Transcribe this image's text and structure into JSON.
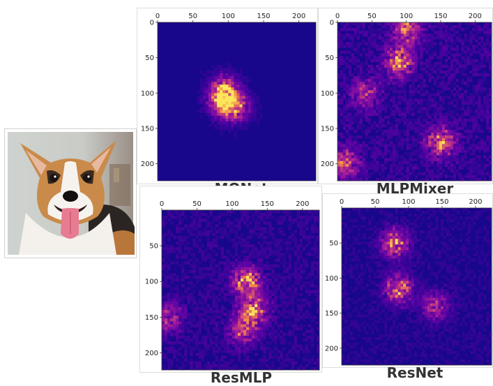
{
  "photo": {
    "subject-icon": "corgi-dog-photo-icon"
  },
  "colors": {
    "heat_low": "#17089a",
    "heat_mid": "#7a1fb0",
    "heat_high": "#f7a23a",
    "heat_peak": "#ffe66b"
  },
  "chart_data": [
    {
      "type": "heatmap",
      "title": "MONet",
      "xticks": [
        0,
        50,
        100,
        150,
        200
      ],
      "yticks": [
        0,
        50,
        100,
        150,
        200
      ],
      "xlim": [
        0,
        224
      ],
      "ylim": [
        224,
        0
      ],
      "colormap": "plasma",
      "hotspots": [
        {
          "x": 95,
          "y": 95,
          "intensity": 0.8
        },
        {
          "x": 110,
          "y": 120,
          "intensity": 0.75
        },
        {
          "x": 90,
          "y": 115,
          "intensity": 0.6
        }
      ],
      "background_intensity": 0.08
    },
    {
      "type": "heatmap",
      "title": "MLPMixer",
      "xticks": [
        0,
        50,
        100,
        150,
        200
      ],
      "yticks": [
        0,
        50,
        100,
        150,
        200
      ],
      "xlim": [
        0,
        224
      ],
      "ylim": [
        224,
        0
      ],
      "colormap": "plasma",
      "hotspots": [
        {
          "x": 90,
          "y": 55,
          "intensity": 0.8
        },
        {
          "x": 100,
          "y": 10,
          "intensity": 0.7
        },
        {
          "x": 150,
          "y": 170,
          "intensity": 0.75
        },
        {
          "x": 10,
          "y": 200,
          "intensity": 0.7
        },
        {
          "x": 40,
          "y": 100,
          "intensity": 0.5
        }
      ],
      "background_intensity": 0.25
    },
    {
      "type": "heatmap",
      "title": "ResMLP",
      "xticks": [
        0,
        50,
        100,
        150,
        200
      ],
      "yticks": [
        50,
        100,
        150,
        200
      ],
      "xlim": [
        0,
        224
      ],
      "ylim": [
        224,
        0
      ],
      "colormap": "plasma",
      "hotspots": [
        {
          "x": 120,
          "y": 100,
          "intensity": 0.85
        },
        {
          "x": 130,
          "y": 140,
          "intensity": 0.8
        },
        {
          "x": 115,
          "y": 170,
          "intensity": 0.6
        },
        {
          "x": 10,
          "y": 150,
          "intensity": 0.55
        }
      ],
      "background_intensity": 0.2
    },
    {
      "type": "heatmap",
      "title": "ResNet",
      "xticks": [
        0,
        50,
        100,
        150,
        200
      ],
      "yticks": [
        50,
        100,
        150,
        200
      ],
      "xlim": [
        0,
        224
      ],
      "ylim": [
        224,
        0
      ],
      "colormap": "plasma",
      "hotspots": [
        {
          "x": 80,
          "y": 50,
          "intensity": 0.8
        },
        {
          "x": 85,
          "y": 115,
          "intensity": 0.85
        },
        {
          "x": 140,
          "y": 140,
          "intensity": 0.55
        }
      ],
      "background_intensity": 0.15
    }
  ]
}
